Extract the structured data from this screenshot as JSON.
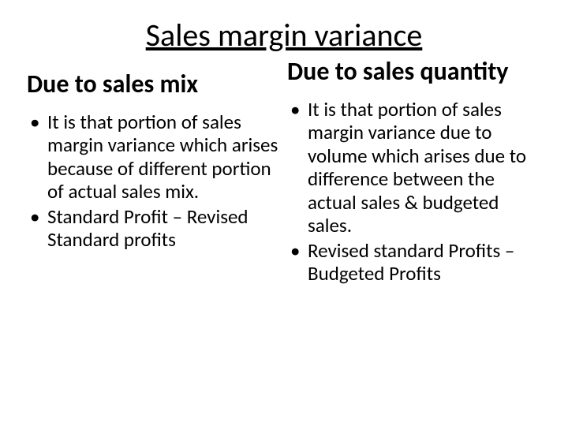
{
  "slide": {
    "title": "Sales margin variance",
    "background_color": "#ffffff",
    "text_color": "#000000",
    "font_family": "Calibri",
    "title_fontsize": 40,
    "subheading_fontsize": 32,
    "body_fontsize": 25,
    "columns": {
      "left": {
        "heading": "Due to sales mix",
        "bullets": [
          "It is that portion of sales margin variance which arises because of different portion of actual sales mix.",
          "Standard Profit – Revised Standard profits"
        ]
      },
      "right": {
        "heading": "Due to sales quantity",
        "bullets": [
          "It is that portion of sales margin variance due to volume which arises due to difference between the actual sales & budgeted sales.",
          "Revised standard Profits – Budgeted Profits"
        ]
      }
    }
  }
}
